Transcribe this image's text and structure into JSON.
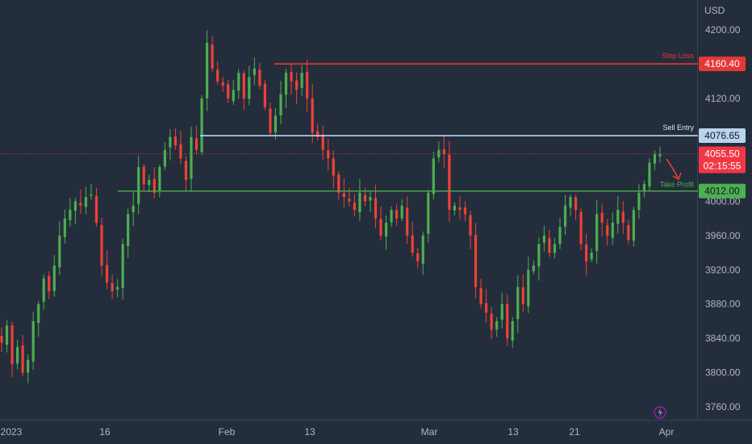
{
  "theme": {
    "background": "#242d3c",
    "up_color": "#4caf50",
    "down_color": "#ef4136",
    "stop_color": "#e53935",
    "entry_color": "#b8d4ee",
    "take_profit_color": "#4caf50",
    "axis_text_color": "#b2b5be"
  },
  "chart_data": {
    "type": "candlestick",
    "currency_label": "USD",
    "ylim": [
      3745,
      4235
    ],
    "y_ticks": [
      "4200.00",
      "4160.00",
      "4120.00",
      "4080.00",
      "4040.00",
      "4000.00",
      "3960.00",
      "3920.00",
      "3880.00",
      "3840.00",
      "3800.00",
      "3760.00"
    ],
    "x_labels": [
      "2023",
      "16",
      "Feb",
      "13",
      "Mar",
      "13",
      "21",
      "Apr"
    ],
    "lines": [
      {
        "name": "Stop Loss",
        "value": 4160.4,
        "badge": "4160.40",
        "color": "#e53935"
      },
      {
        "name": "Sell Entry",
        "value": 4076.65,
        "badge": "4076.65",
        "color": "#b8d4ee"
      },
      {
        "name": "Take Profit",
        "value": 4012.0,
        "badge": "4012.00",
        "color": "#4caf50"
      }
    ],
    "current_price": {
      "value": 4055.5,
      "label": "4055.50",
      "countdown": "02:15:55",
      "color": "#f23645"
    },
    "close_path": [
      3835,
      3855,
      3810,
      3830,
      3800,
      3815,
      3860,
      3880,
      3910,
      3895,
      3925,
      3960,
      3980,
      3990,
      4000,
      3995,
      4005,
      4008,
      3975,
      3925,
      3905,
      3895,
      3900,
      3950,
      3985,
      3995,
      4040,
      4020,
      4025,
      4010,
      4040,
      4060,
      4075,
      4065,
      4050,
      4025,
      4075,
      4060,
      4120,
      4185,
      4155,
      4140,
      4135,
      4120,
      4130,
      4150,
      4120,
      4145,
      4155,
      4135,
      4110,
      4080,
      4100,
      4125,
      4150,
      4140,
      4130,
      4150,
      4120,
      4080,
      4075,
      4060,
      4050,
      4030,
      4010,
      4005,
      4000,
      3990,
      4010,
      4000,
      4005,
      3980,
      3960,
      3975,
      3990,
      3980,
      3995,
      3960,
      3940,
      3930,
      3960,
      4010,
      4050,
      4060,
      4055,
      3990,
      3995,
      3990,
      3985,
      3960,
      3900,
      3880,
      3870,
      3850,
      3860,
      3880,
      3840,
      3860,
      3900,
      3880,
      3920,
      3925,
      3950,
      3960,
      3940,
      3950,
      3970,
      3995,
      4005,
      3990,
      3950,
      3930,
      3940,
      3985,
      3975,
      3960,
      3975,
      3990,
      3975,
      3955,
      3990,
      4010,
      4020,
      4045,
      4055,
      4055
    ]
  }
}
